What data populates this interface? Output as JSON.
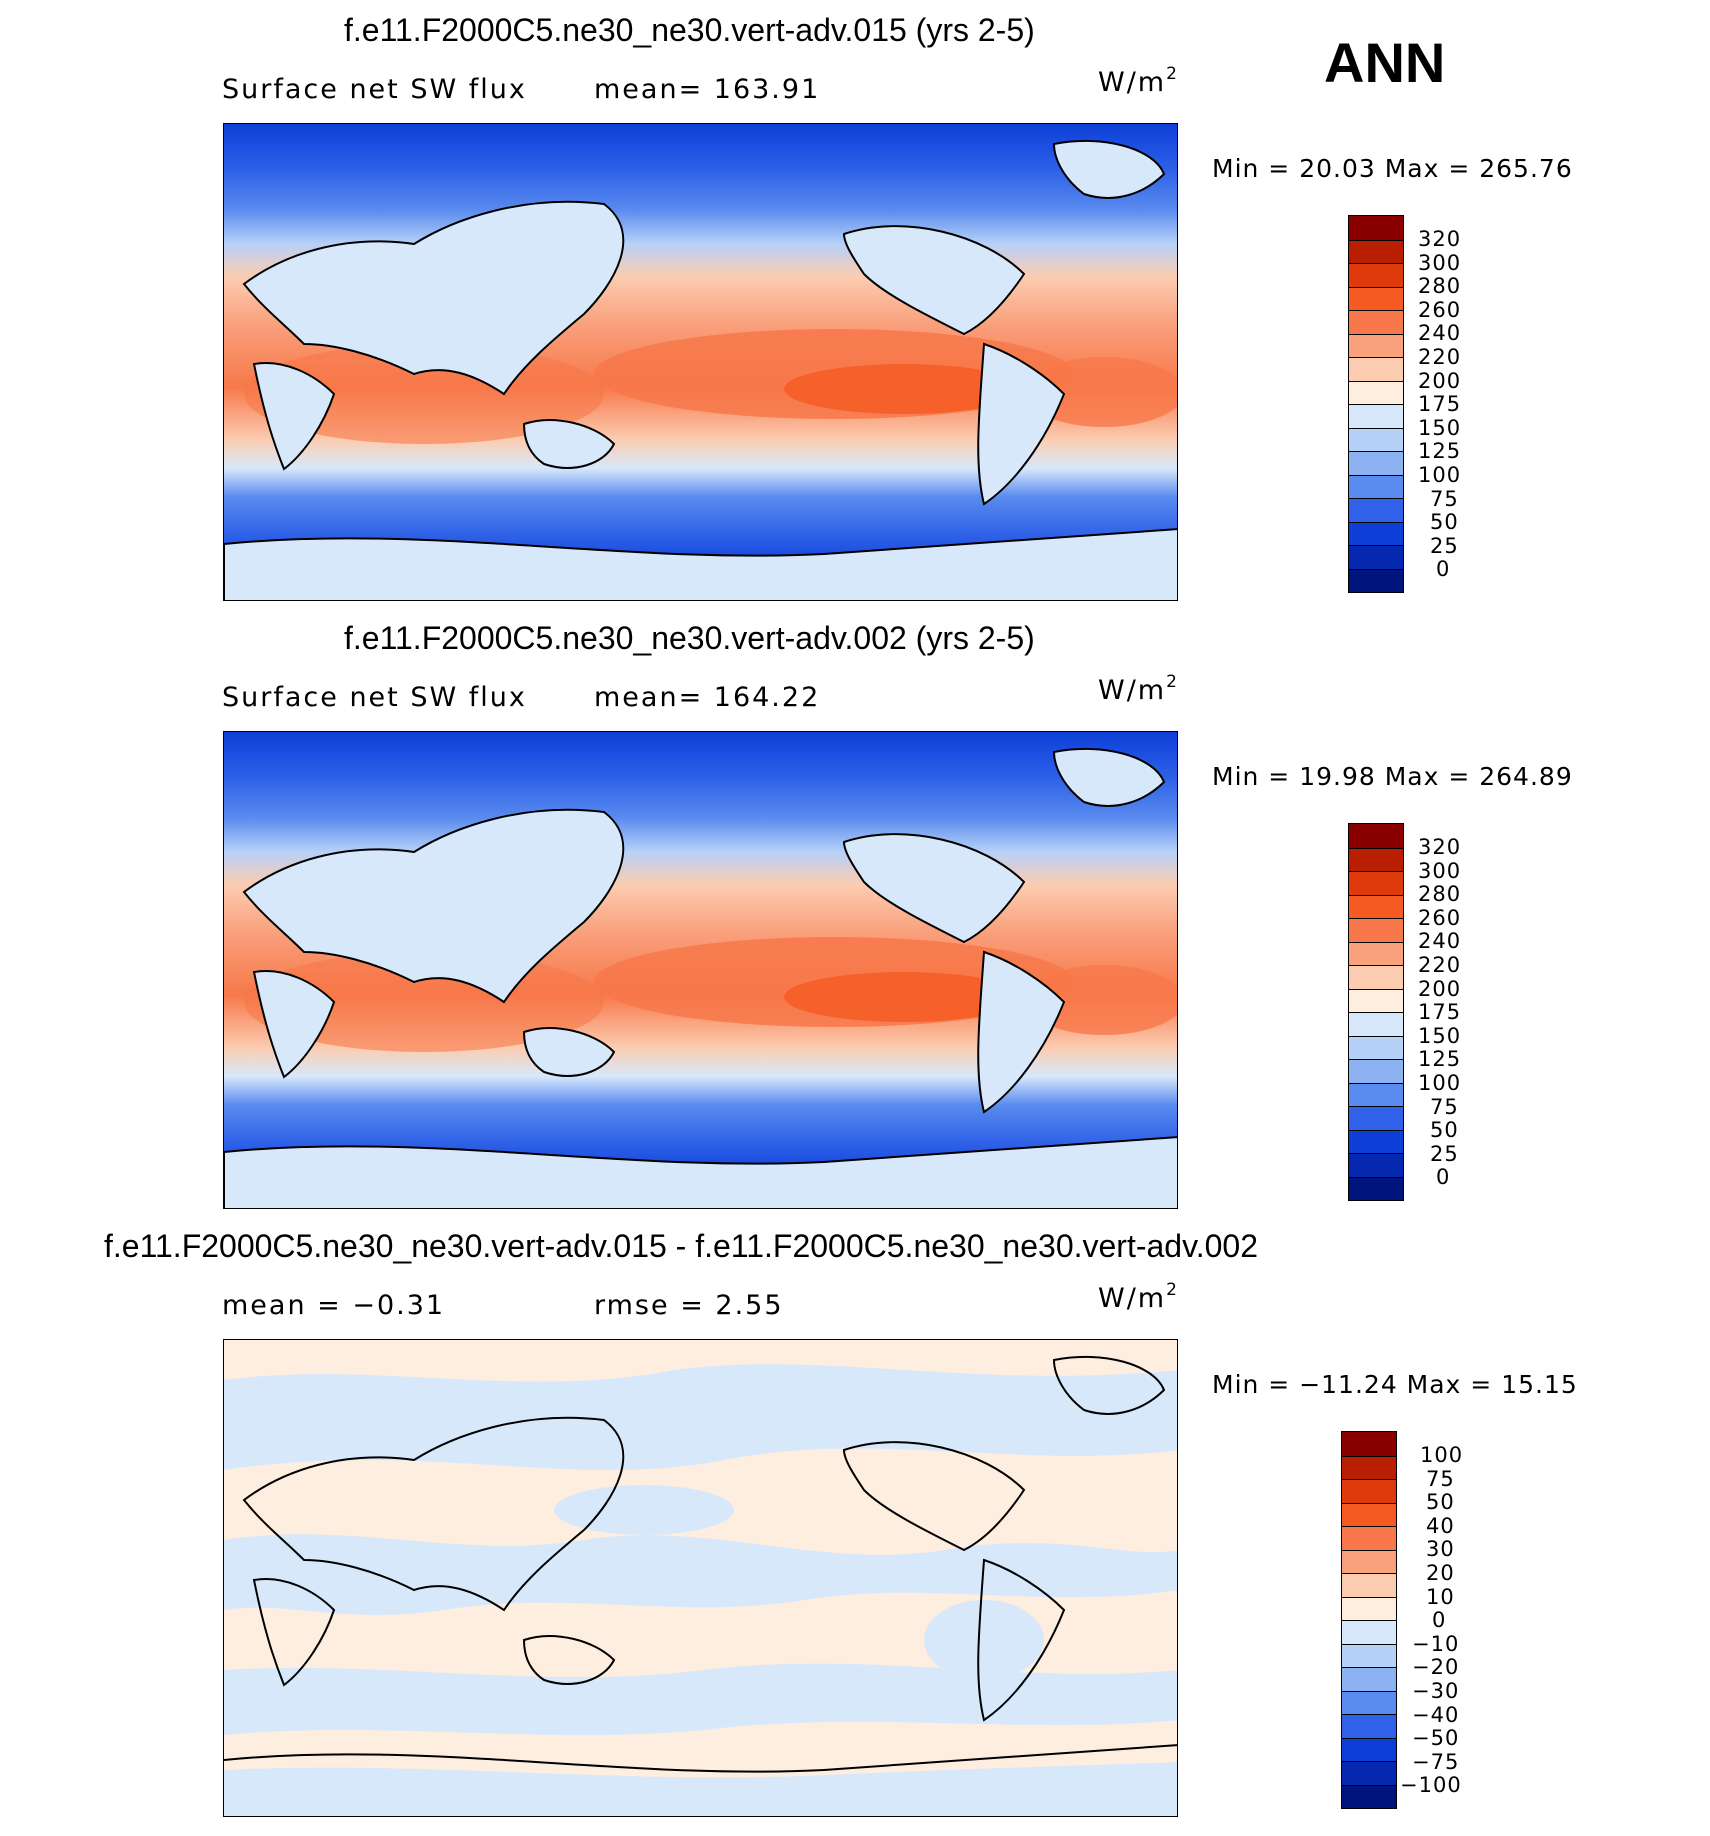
{
  "season": "ANN",
  "panels": [
    {
      "title": "f.e11.F2000C5.ne30_ne30.vert-adv.015 (yrs 2-5)",
      "variable": "Surface net SW flux",
      "stat1": "mean= 163.91",
      "stat2": "",
      "units": "W/m",
      "units_sup": "2",
      "minmax": "Min =   20.03 Max  =  265.76",
      "kind": "abs",
      "colorbar_labels": [
        "320",
        "300",
        "280",
        "260",
        "240",
        "220",
        "200",
        "175",
        "150",
        "125",
        "100",
        "75",
        "50",
        "25",
        "0"
      ]
    },
    {
      "title": "f.e11.F2000C5.ne30_ne30.vert-adv.002 (yrs 2-5)",
      "variable": "Surface net SW flux",
      "stat1": "mean= 164.22",
      "stat2": "",
      "units": "W/m",
      "units_sup": "2",
      "minmax": "Min =   19.98 Max  =  264.89",
      "kind": "abs",
      "colorbar_labels": [
        "320",
        "300",
        "280",
        "260",
        "240",
        "220",
        "200",
        "175",
        "150",
        "125",
        "100",
        "75",
        "50",
        "25",
        "0"
      ]
    },
    {
      "title": "f.e11.F2000C5.ne30_ne30.vert-adv.015 - f.e11.F2000C5.ne30_ne30.vert-adv.002",
      "variable": "mean =   −0.31",
      "stat1": "rmse =    2.55",
      "stat2": "",
      "units": "W/m",
      "units_sup": "2",
      "minmax": "Min = −11.24 Max =   15.15",
      "kind": "diff",
      "colorbar_labels": [
        "100",
        "75",
        "50",
        "40",
        "30",
        "20",
        "10",
        "0",
        "−10",
        "−20",
        "−30",
        "−40",
        "−50",
        "−75",
        "−100"
      ]
    }
  ],
  "colors": {
    "abs": [
      "#8a0000",
      "#b81e00",
      "#de3a0c",
      "#f55a22",
      "#f7784a",
      "#f9a07c",
      "#fcccb0",
      "#fdeee0",
      "#d8e8fb",
      "#b6d1f8",
      "#8cb2f2",
      "#5a8bee",
      "#2f62e8",
      "#0d3fd8",
      "#0628b0",
      "#00147e"
    ],
    "diff": [
      "#8a0000",
      "#b81e00",
      "#de3a0c",
      "#f55a22",
      "#f7784a",
      "#f9a07c",
      "#fcccb0",
      "#fdeee0",
      "#d8e8fb",
      "#b6d1f8",
      "#8cb2f2",
      "#5a8bee",
      "#2f62e8",
      "#0d3fd8",
      "#0628b0",
      "#00147e"
    ]
  }
}
